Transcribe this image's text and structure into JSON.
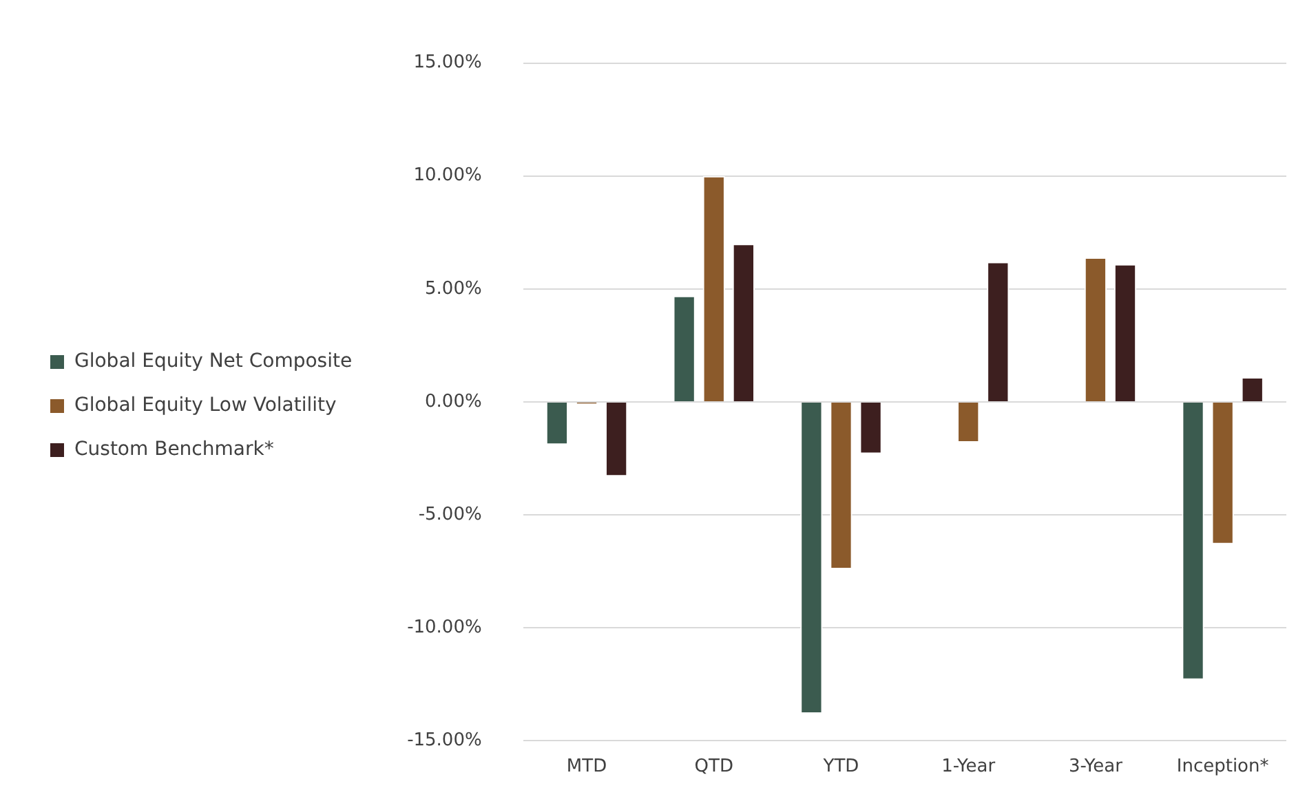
{
  "chart_data": {
    "type": "bar",
    "categories": [
      "MTD",
      "QTD",
      "YTD",
      "1-Year",
      "3-Year",
      "Inception*"
    ],
    "series": [
      {
        "name": "Global Equity Net Composite",
        "color": "#3b5b4f",
        "values": [
          -1.9,
          4.7,
          -13.8,
          null,
          null,
          -12.3
        ]
      },
      {
        "name": "Global Equity Low Volatility",
        "color": "#8b5a2b",
        "values": [
          -0.1,
          10.0,
          -7.4,
          -1.8,
          6.4,
          -6.3
        ]
      },
      {
        "name": "Custom Benchmark*",
        "color": "#3d1f1f",
        "values": [
          -3.3,
          7.0,
          -2.3,
          6.2,
          6.1,
          1.1
        ]
      }
    ],
    "ylim": [
      -15,
      15
    ],
    "yticks": [
      {
        "value": -15,
        "label": "-15.00%"
      },
      {
        "value": -10,
        "label": "-10.00%"
      },
      {
        "value": -5,
        "label": "-5.00%"
      },
      {
        "value": 0,
        "label": "0.00%"
      },
      {
        "value": 5,
        "label": "5.00%"
      },
      {
        "value": 10,
        "label": "10.00%"
      },
      {
        "value": 15,
        "label": "15.00%"
      }
    ],
    "grid": "y",
    "legend": "left"
  }
}
